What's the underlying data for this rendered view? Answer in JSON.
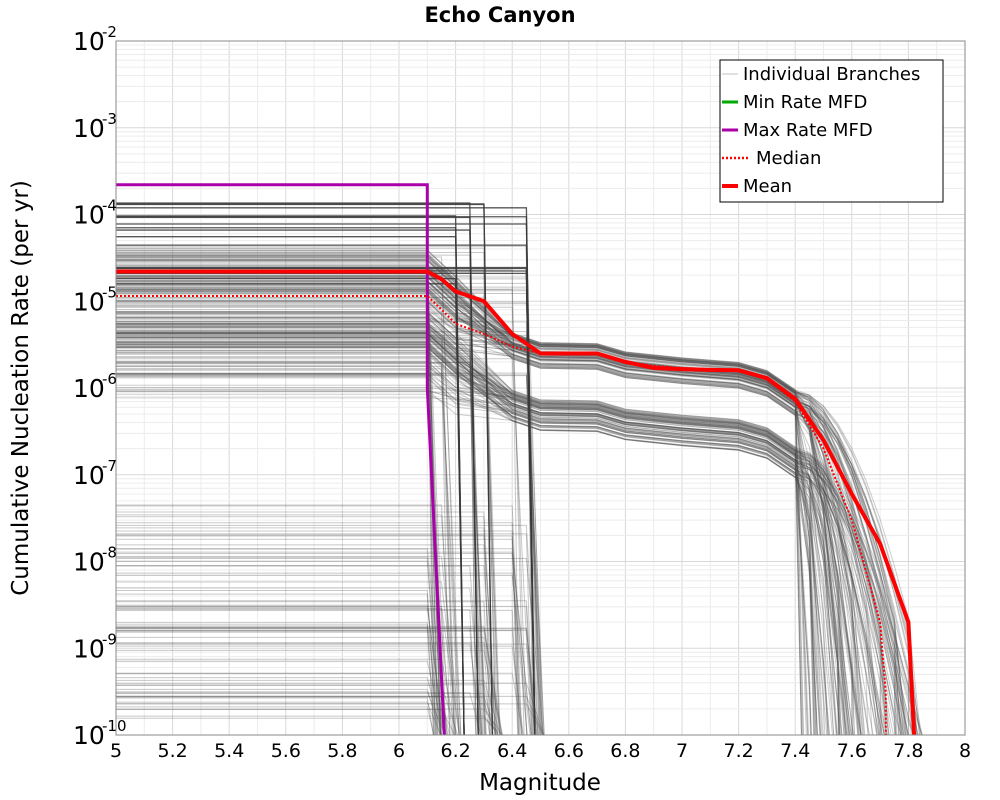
{
  "chart_data": {
    "type": "line",
    "title": "Echo Canyon",
    "xlabel": "Magnitude",
    "ylabel": "Cumulative Nucleation Rate (per yr)",
    "xlim": [
      5,
      8
    ],
    "ylim": [
      1e-10,
      0.01
    ],
    "yscale": "log",
    "grid": true,
    "legend_position": "top-right",
    "x_ticks": [
      "5",
      "5.2",
      "5.4",
      "5.6",
      "5.8",
      "6",
      "6.2",
      "6.4",
      "6.6",
      "6.8",
      "7",
      "7.2",
      "7.4",
      "7.6",
      "7.8",
      "8"
    ],
    "y_ticks": [
      {
        "base": "10",
        "exp": "-10"
      },
      {
        "base": "10",
        "exp": "-9"
      },
      {
        "base": "10",
        "exp": "-8"
      },
      {
        "base": "10",
        "exp": "-7"
      },
      {
        "base": "10",
        "exp": "-6"
      },
      {
        "base": "10",
        "exp": "-5"
      },
      {
        "base": "10",
        "exp": "-4"
      },
      {
        "base": "10",
        "exp": "-3"
      },
      {
        "base": "10",
        "exp": "-2"
      }
    ],
    "series": [
      {
        "name": "Individual Branches",
        "color": "#4a4a4a",
        "note_values": "many branch curves (approximate representative set)",
        "values": []
      },
      {
        "name": "Min Rate MFD",
        "color": "#00aa00",
        "x": [],
        "y": []
      },
      {
        "name": "Max Rate MFD",
        "color": "#aa00aa",
        "x": [
          5.0,
          6.1,
          6.1,
          6.16
        ],
        "y": [
          0.00022,
          0.00022,
          1e-06,
          1e-10
        ]
      },
      {
        "name": "Median",
        "color": "#ff0000",
        "style": "dotted",
        "x": [
          5.0,
          6.1,
          6.15,
          6.2,
          6.3,
          6.4,
          6.5,
          6.7,
          6.8,
          6.9,
          7.0,
          7.2,
          7.3,
          7.4,
          7.5,
          7.6,
          7.7,
          7.72,
          7.72
        ],
        "y": [
          1.15e-05,
          1.15e-05,
          8e-06,
          5.5e-06,
          4.2e-06,
          3e-06,
          2.5e-06,
          2.5e-06,
          2e-06,
          1.8e-06,
          1.7e-06,
          1.6e-06,
          1.25e-06,
          7e-07,
          2e-07,
          3e-08,
          2e-09,
          3e-10,
          1e-10
        ]
      },
      {
        "name": "Mean",
        "color": "#ff0000",
        "style": "solid",
        "x": [
          5.0,
          6.1,
          6.15,
          6.2,
          6.3,
          6.4,
          6.5,
          6.6,
          6.7,
          6.8,
          6.9,
          7.0,
          7.1,
          7.2,
          7.3,
          7.4,
          7.5,
          7.6,
          7.7,
          7.8,
          7.82
        ],
        "y": [
          2.2e-05,
          2.2e-05,
          1.8e-05,
          1.3e-05,
          1e-05,
          4.2e-06,
          2.5e-06,
          2.5e-06,
          2.5e-06,
          2e-06,
          1.7e-06,
          1.65e-06,
          1.62e-06,
          1.6e-06,
          1.3e-06,
          7.5e-07,
          2.5e-07,
          6e-08,
          1.6e-08,
          2e-09,
          1e-10
        ]
      }
    ]
  }
}
